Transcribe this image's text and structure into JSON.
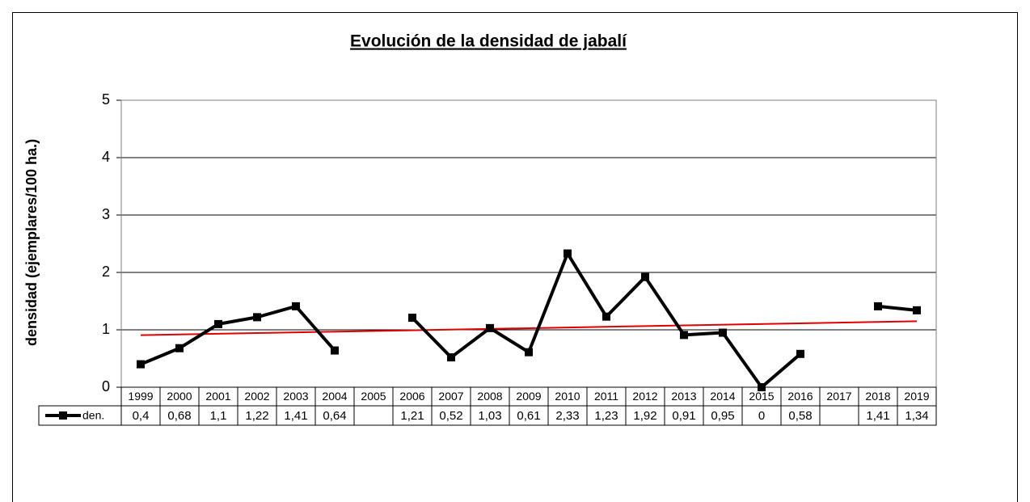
{
  "chart_data": {
    "type": "line",
    "title": "Evolución de la densidad de jabalí",
    "y_label": "densidad (ejemplares/100 ha.)",
    "categories": [
      "1999",
      "2000",
      "2001",
      "2002",
      "2003",
      "2004",
      "2005",
      "2006",
      "2007",
      "2008",
      "2009",
      "2010",
      "2011",
      "2012",
      "2013",
      "2014",
      "2015",
      "2016",
      "2017",
      "2018",
      "2019"
    ],
    "series": [
      {
        "name": "den.",
        "color": "#000000",
        "values": [
          0.4,
          0.68,
          1.1,
          1.22,
          1.41,
          0.64,
          null,
          1.21,
          0.52,
          1.03,
          0.61,
          2.33,
          1.23,
          1.92,
          0.91,
          0.95,
          0,
          0.58,
          null,
          1.41,
          1.34
        ],
        "value_labels": [
          "0,4",
          "0,68",
          "1,1",
          "1,22",
          "1,41",
          "0,64",
          null,
          "1,21",
          "0,52",
          "1,03",
          "0,61",
          "2,33",
          "1,23",
          "1,92",
          "0,91",
          "0,95",
          "0",
          "0,58",
          null,
          "1,41",
          "1,34"
        ]
      }
    ],
    "trendline": "linear",
    "trendline_color": "#e00000",
    "ylim": [
      0,
      5
    ],
    "yticks": [
      0,
      1,
      2,
      3,
      4,
      5
    ],
    "grid": true,
    "data_table": true
  }
}
